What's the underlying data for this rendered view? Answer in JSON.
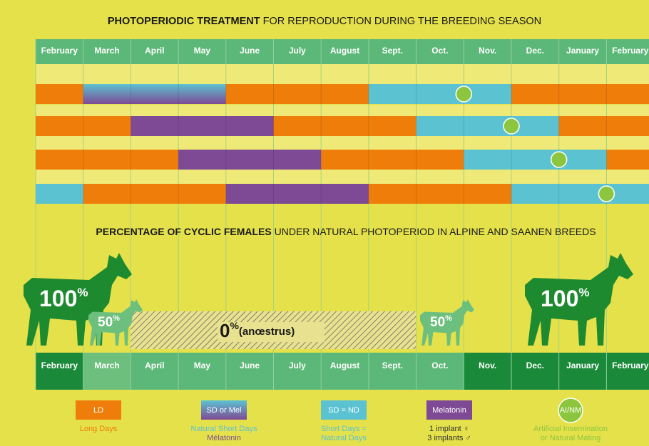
{
  "header": {
    "title_bold": "PHOTOPERIODIC TREATMENT",
    "title_rest": "FOR REPRODUCTION DURING THE BREEDING SEASON"
  },
  "months_top": [
    "February",
    "March",
    "April",
    "May",
    "June",
    "July",
    "August",
    "Sept.",
    "Oct.",
    "Nov.",
    "Dec.",
    "January",
    "February"
  ],
  "cyclic": {
    "title_bold": "PERCENTAGE OF CYCLIC FEMALES",
    "title_rest": "UNDER NATURAL PHOTOPERIOD IN ALPINE AND SAANEN BREEDS",
    "left_full": "100",
    "left_half": "50",
    "zero": "0",
    "zero_note": "(anœstrus)",
    "right_half": "50",
    "right_full": "100",
    "percent": "%"
  },
  "months_bottom": [
    "February",
    "March",
    "April",
    "May",
    "June",
    "July",
    "August",
    "Sept.",
    "Oct.",
    "Nov.",
    "Dec.",
    "January",
    "February"
  ],
  "legend": [
    {
      "box": "LD",
      "lines": [
        "Long Days"
      ]
    },
    {
      "box": "SD or Mel",
      "lines": [
        "Natural Short Days",
        "Mélatonin"
      ]
    },
    {
      "box": "SD = ND",
      "lines": [
        "Short Days =",
        "Natural Days"
      ]
    },
    {
      "box": "Melatonin",
      "lines": [
        "1 implant ♀",
        "3 implants ♂"
      ]
    },
    {
      "box": "AI/NM",
      "lines": [
        "Artificial Insemination",
        "or Natural Mating"
      ]
    }
  ]
}
